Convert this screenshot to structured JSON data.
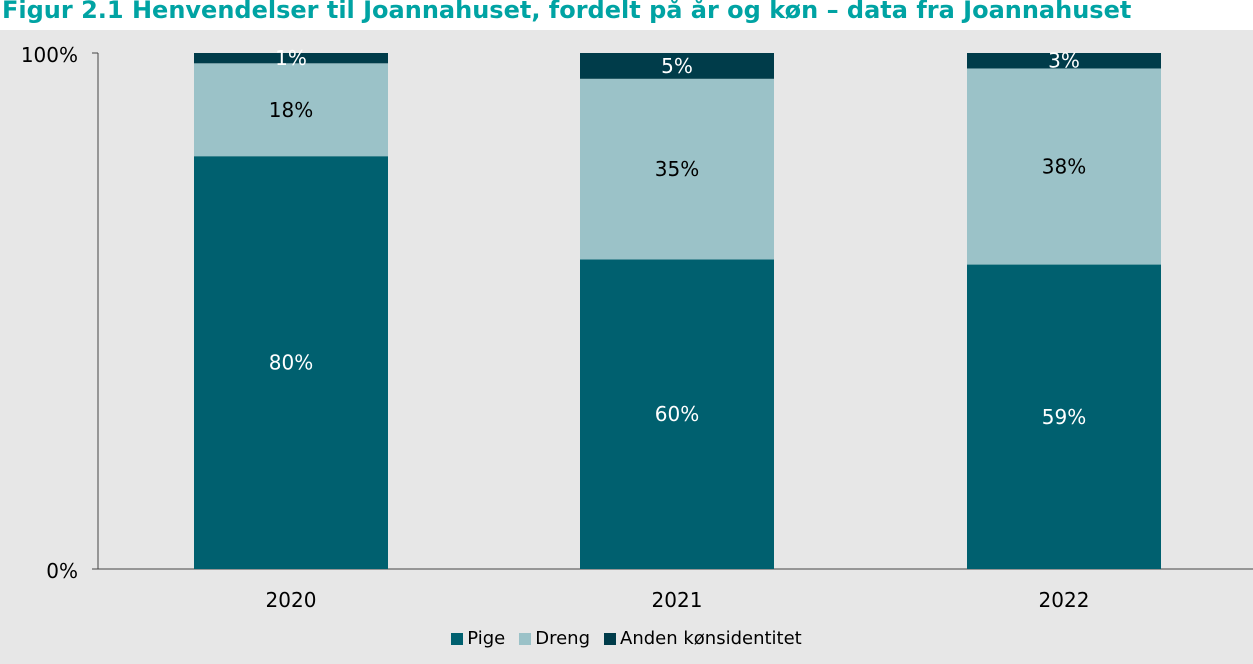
{
  "chart_data": {
    "type": "bar",
    "stacked": true,
    "title": "Figur 2.1 Henvendelser til Joannahuset, fordelt på år og køn – data fra Joannahuset",
    "categories": [
      "2020",
      "2021",
      "2022"
    ],
    "series": [
      {
        "name": "Pige",
        "color": "#00606f",
        "values": [
          80,
          60,
          59
        ],
        "labels": [
          "80%",
          "60%",
          "59%"
        ],
        "label_color": "#ffffff"
      },
      {
        "name": "Dreng",
        "color": "#9bc2c8",
        "values": [
          18,
          35,
          38
        ],
        "labels": [
          "18%",
          "35%",
          "38%"
        ],
        "label_color": "#000000"
      },
      {
        "name": "Anden kønsidentitet",
        "color": "#003c4a",
        "values": [
          1,
          5,
          3
        ],
        "labels": [
          "1%",
          "5%",
          "3%"
        ],
        "label_color": "#ffffff"
      }
    ],
    "yticks": [
      "0%",
      "100%"
    ],
    "ylim": [
      0,
      100
    ],
    "legend_position": "bottom"
  }
}
